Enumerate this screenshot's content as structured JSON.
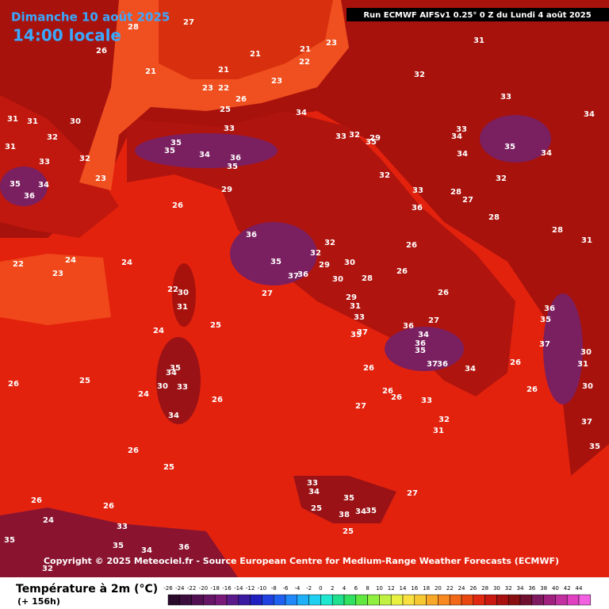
{
  "header": {
    "date": "Dimanche 10 août 2025",
    "time": "14:00 locale",
    "run": "Run ECMWF AIFSv1 0.25° 0 Z du Lundi 4 août 2025"
  },
  "copyright": "Copyright © 2025 Meteociel.fr - Source European Centre for Medium-Range Weather Forecasts (ECMWF)",
  "legend": {
    "title": "Température à 2m (°C)",
    "lead": "(+ 156h)",
    "ticks": [
      -26,
      -24,
      -22,
      -20,
      -18,
      -16,
      -14,
      -12,
      -10,
      -8,
      -6,
      -4,
      -2,
      0,
      2,
      4,
      6,
      8,
      10,
      12,
      14,
      16,
      18,
      20,
      22,
      24,
      26,
      28,
      30,
      32,
      34,
      36,
      38,
      40,
      42,
      44
    ],
    "colors": [
      "#2a0a2a",
      "#3d0d3d",
      "#521052",
      "#661466",
      "#7a187a",
      "#5a1a8a",
      "#3a1aa0",
      "#2020c0",
      "#2040e0",
      "#2060f0",
      "#2088f8",
      "#20b0f8",
      "#20d0f0",
      "#20e8d0",
      "#20e090",
      "#30e060",
      "#60e840",
      "#90f040",
      "#c0f040",
      "#e8f040",
      "#f8e040",
      "#f8c830",
      "#f8a828",
      "#f88820",
      "#f06818",
      "#e84810",
      "#e02810",
      "#c81810",
      "#a81010",
      "#881010",
      "#701030",
      "#801a60",
      "#a02080",
      "#c030a0",
      "#e040c0",
      "#f060e0"
    ]
  },
  "labels": [
    "26",
    "27",
    "28",
    "21",
    "21",
    "23",
    "22",
    "26",
    "25",
    "21",
    "23",
    "23",
    "21",
    "22",
    "31",
    "32",
    "33",
    "34",
    "34",
    "33",
    "33",
    "32",
    "35",
    "29",
    "33",
    "34",
    "34",
    "35",
    "34",
    "32",
    "31",
    "31",
    "32",
    "30",
    "31",
    "33",
    "32",
    "23",
    "35",
    "35",
    "34",
    "36",
    "35",
    "35",
    "36",
    "34",
    "26",
    "29",
    "32",
    "33",
    "36",
    "28",
    "27",
    "28",
    "28",
    "31",
    "22",
    "24",
    "23",
    "24",
    "36",
    "35",
    "37",
    "36",
    "32",
    "32",
    "30",
    "29",
    "28",
    "30",
    "26",
    "26",
    "26",
    "27",
    "29",
    "31",
    "33",
    "22",
    "30",
    "31",
    "24",
    "25",
    "36",
    "27",
    "35",
    "37",
    "34",
    "36",
    "35",
    "37",
    "36",
    "34",
    "26",
    "35",
    "34",
    "30",
    "33",
    "24",
    "25",
    "26",
    "26",
    "26",
    "26",
    "33",
    "27",
    "34",
    "32",
    "31",
    "26",
    "26",
    "35",
    "36",
    "37",
    "30",
    "31",
    "30",
    "37",
    "35",
    "26",
    "25",
    "27",
    "26",
    "26",
    "24",
    "33",
    "35",
    "34",
    "36",
    "35",
    "32",
    "33",
    "34",
    "25",
    "35",
    "34",
    "35",
    "38",
    "25"
  ]
}
